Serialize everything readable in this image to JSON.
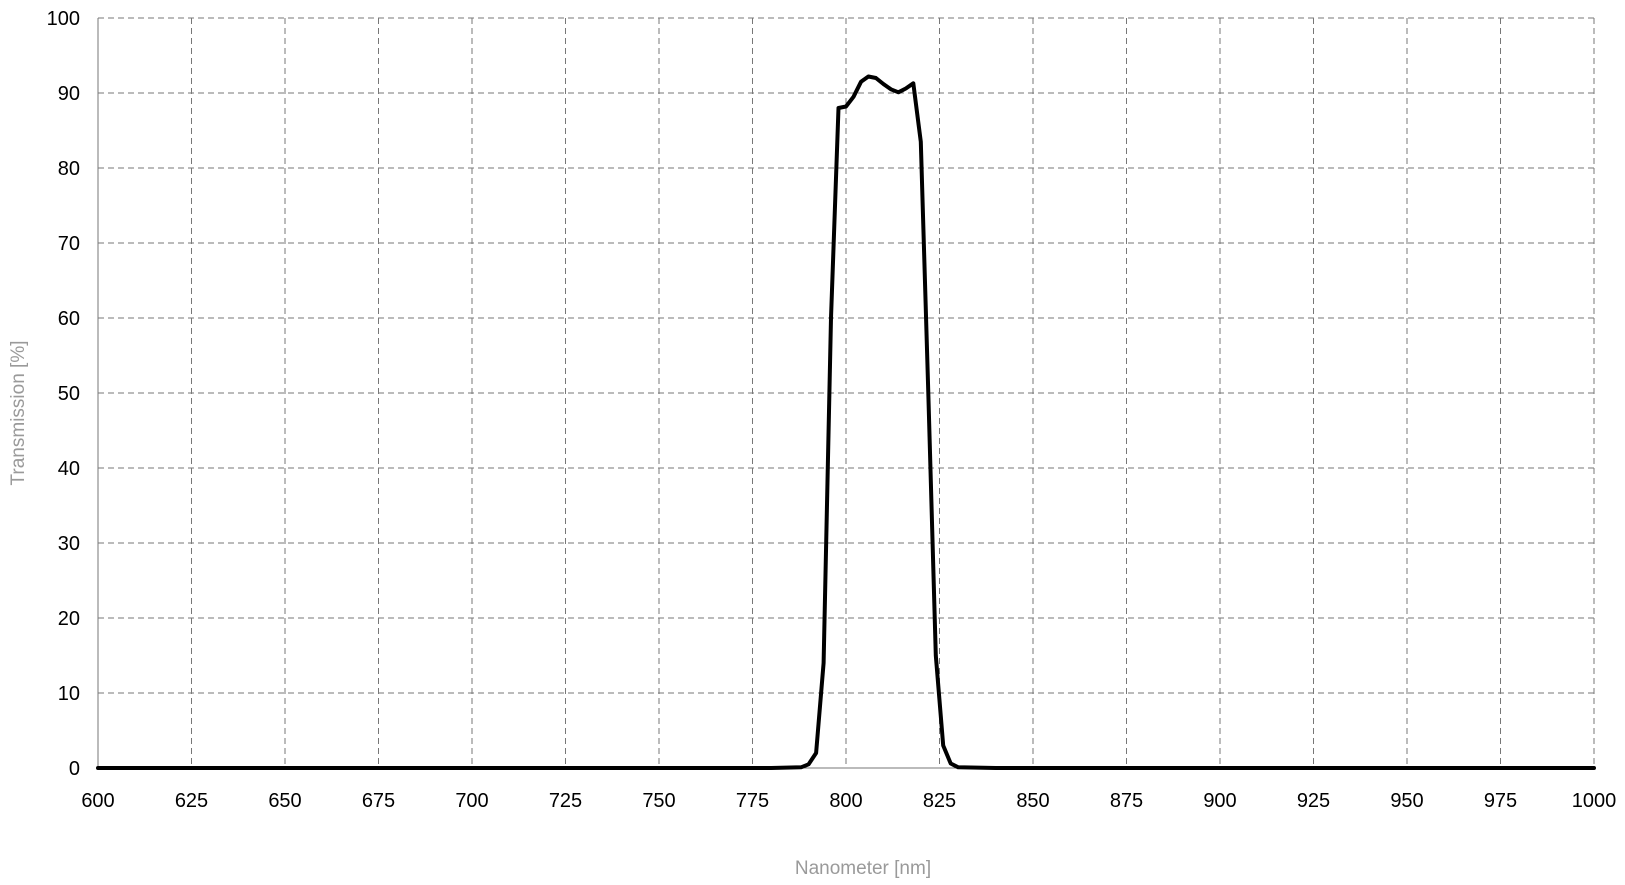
{
  "chart_data": {
    "type": "line",
    "title": "",
    "xlabel": "Nanometer [nm]",
    "ylabel": "Transmission [%]",
    "xlim": [
      600,
      1000
    ],
    "ylim": [
      0,
      100
    ],
    "x_ticks": [
      600,
      625,
      650,
      675,
      700,
      725,
      750,
      775,
      800,
      825,
      850,
      875,
      900,
      925,
      950,
      975,
      1000
    ],
    "y_ticks": [
      0,
      10,
      20,
      30,
      40,
      50,
      60,
      70,
      80,
      90,
      100
    ],
    "grid": true,
    "series": [
      {
        "color": "#000000",
        "x": [
          600,
          700,
          780,
          788,
          790,
          792,
          794,
          796,
          798,
          800,
          802,
          804,
          806,
          808,
          810,
          812,
          814,
          816,
          818,
          820,
          822,
          824,
          826,
          828,
          830,
          840,
          860,
          880,
          900,
          920,
          940,
          960,
          980,
          1000
        ],
        "y": [
          0,
          0,
          0,
          0.1,
          0.5,
          2,
          14,
          60,
          88,
          88.2,
          89.5,
          91.5,
          92.2,
          92,
          91.2,
          90.5,
          90.1,
          90.6,
          91.3,
          83.5,
          50,
          15,
          3,
          0.6,
          0.1,
          0,
          0,
          0,
          0,
          0,
          0,
          0,
          0,
          0
        ]
      }
    ]
  }
}
